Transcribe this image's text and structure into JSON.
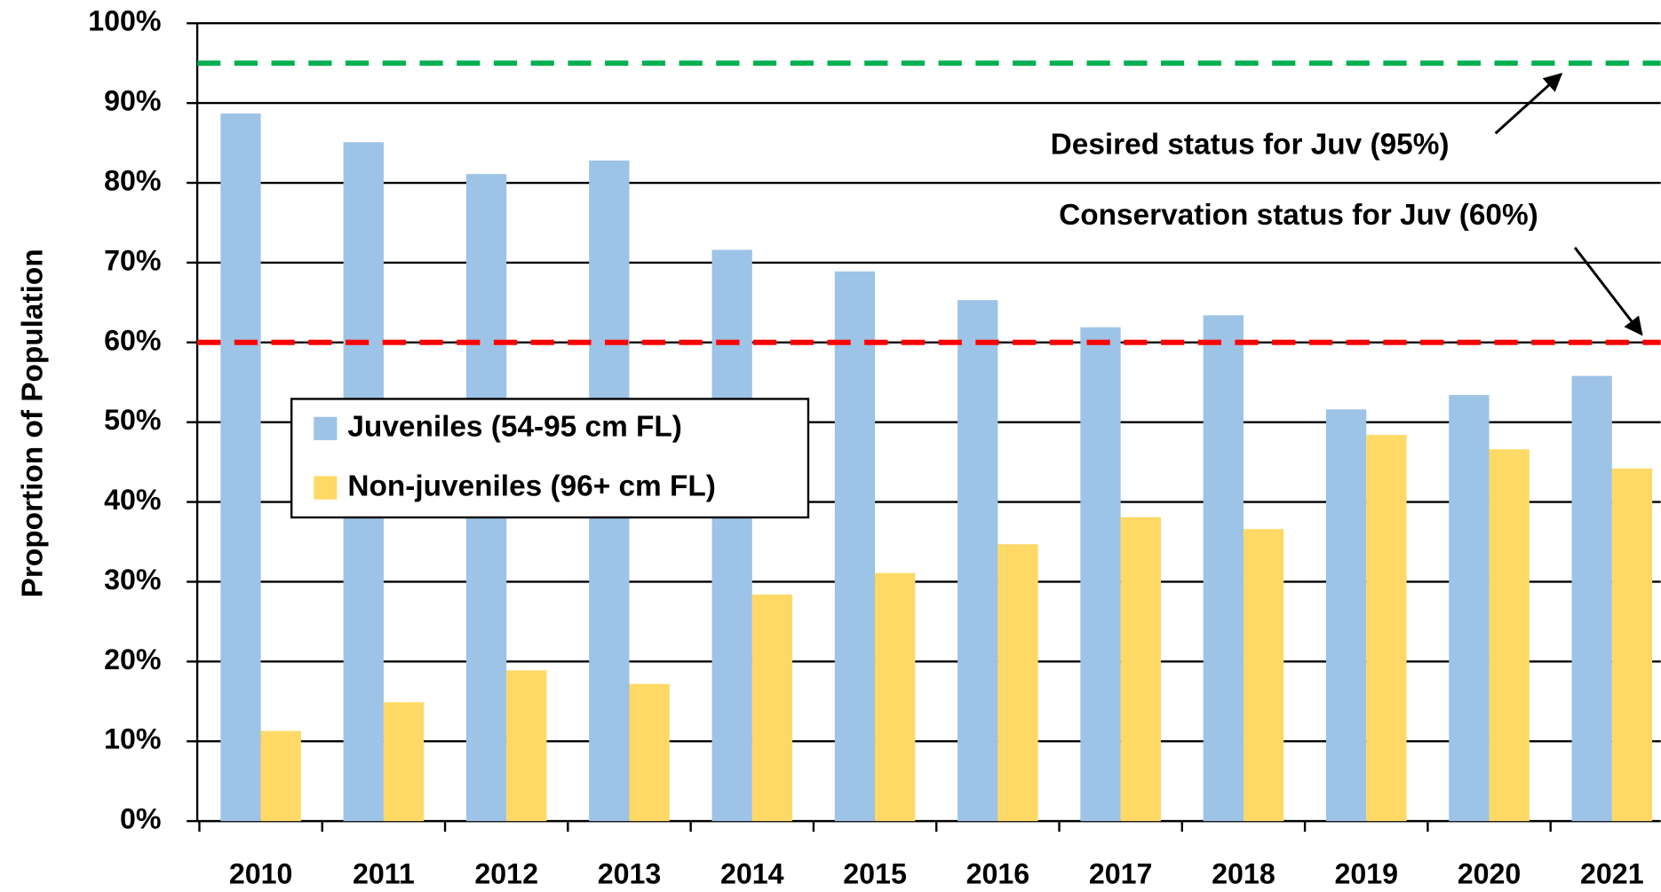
{
  "chart_data": {
    "type": "bar",
    "y_label": "Proportion of Population",
    "categories": [
      "2010",
      "2011",
      "2012",
      "2013",
      "2014",
      "2015",
      "2016",
      "2017",
      "2018",
      "2019",
      "2020",
      "2021"
    ],
    "series": [
      {
        "name": "Juveniles (54-95 cm FL)",
        "color": "#9dc3e6",
        "values": [
          88.7,
          85.1,
          81.1,
          82.8,
          71.6,
          68.9,
          65.3,
          61.9,
          63.4,
          51.6,
          53.4,
          55.8
        ]
      },
      {
        "name": "Non-juveniles (96+ cm FL)",
        "color": "#ffd966",
        "values": [
          11.3,
          14.9,
          18.9,
          17.2,
          28.4,
          31.1,
          34.7,
          38.1,
          36.6,
          48.4,
          46.6,
          44.2
        ]
      }
    ],
    "ylim": [
      0,
      100
    ],
    "yticks": [
      {
        "value": 0,
        "label": "0%"
      },
      {
        "value": 10,
        "label": "10%"
      },
      {
        "value": 20,
        "label": "20%"
      },
      {
        "value": 30,
        "label": "30%"
      },
      {
        "value": 40,
        "label": "40%"
      },
      {
        "value": 50,
        "label": "50%"
      },
      {
        "value": 60,
        "label": "60%"
      },
      {
        "value": 70,
        "label": "70%"
      },
      {
        "value": 80,
        "label": "80%"
      },
      {
        "value": 90,
        "label": "90%"
      },
      {
        "value": 100,
        "label": "100%"
      }
    ],
    "grid": true,
    "reference_lines": [
      {
        "value": 95,
        "color": "#00b050"
      },
      {
        "value": 60,
        "color": "#ff0000"
      }
    ],
    "annotations": [
      "Desired status for Juv (95%)",
      "Conservation status for Juv (60%)"
    ]
  }
}
